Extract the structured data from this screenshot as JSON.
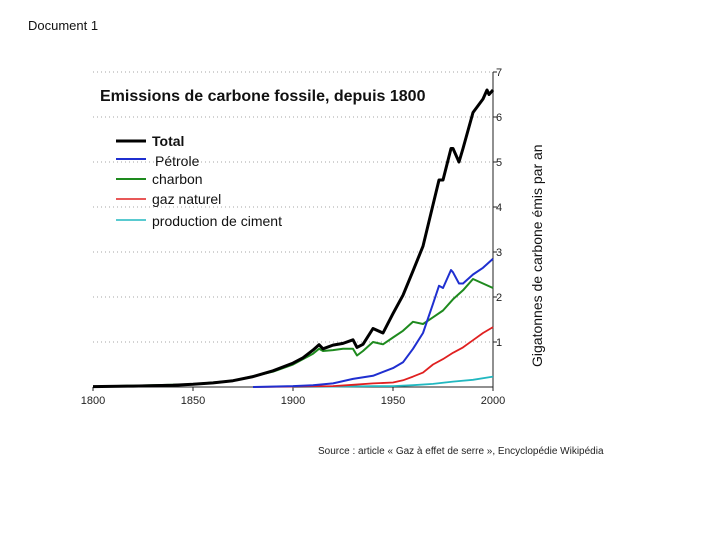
{
  "document": {
    "label": "Document 1",
    "source": "Source : article « Gaz à effet de serre », Encyclopédie Wikipédia"
  },
  "colors": {
    "total": "#000000",
    "petrole": "#1f2fd0",
    "charbon": "#1e8a1e",
    "gaz": "#e02020",
    "ciment": "#22b8c0",
    "grid": "#888888"
  },
  "chart_data": {
    "type": "line",
    "title": "Emissions de carbone fossile, depuis 1800",
    "xlabel": "",
    "ylabel": "Gigatonnes de carbone émis par an",
    "xlim": [
      1800,
      2000
    ],
    "ylim": [
      0,
      7
    ],
    "x_ticks": [
      "1800",
      "1850",
      "1900",
      "1950",
      "2000"
    ],
    "y_ticks": [
      "1",
      "2",
      "3",
      "4",
      "5",
      "6",
      "7"
    ],
    "y_axis_side": "right",
    "grid": "dotted-horizontal",
    "legend_position": "top-left",
    "series": [
      {
        "name": "Total",
        "color_key": "total",
        "x": [
          1800,
          1820,
          1840,
          1850,
          1860,
          1870,
          1880,
          1890,
          1900,
          1905,
          1910,
          1913,
          1915,
          1920,
          1925,
          1930,
          1932,
          1935,
          1940,
          1945,
          1950,
          1955,
          1960,
          1965,
          1970,
          1973,
          1975,
          1979,
          1980,
          1983,
          1985,
          1990,
          1995,
          1997,
          1998,
          2000
        ],
        "values": [
          0.01,
          0.02,
          0.04,
          0.06,
          0.09,
          0.14,
          0.23,
          0.36,
          0.53,
          0.65,
          0.82,
          0.94,
          0.85,
          0.93,
          0.97,
          1.05,
          0.88,
          0.95,
          1.3,
          1.2,
          1.63,
          2.04,
          2.58,
          3.13,
          4.05,
          4.6,
          4.6,
          5.3,
          5.3,
          5.0,
          5.3,
          6.1,
          6.4,
          6.6,
          6.5,
          6.6
        ]
      },
      {
        "name": "Pétrole",
        "color_key": "petrole",
        "x": [
          1880,
          1900,
          1910,
          1920,
          1930,
          1940,
          1950,
          1955,
          1960,
          1965,
          1970,
          1973,
          1975,
          1979,
          1980,
          1983,
          1985,
          1990,
          1995,
          2000
        ],
        "values": [
          0.0,
          0.02,
          0.04,
          0.08,
          0.18,
          0.25,
          0.42,
          0.55,
          0.85,
          1.2,
          1.85,
          2.25,
          2.2,
          2.6,
          2.55,
          2.3,
          2.3,
          2.5,
          2.65,
          2.85
        ]
      },
      {
        "name": "charbon",
        "color_key": "charbon",
        "x": [
          1800,
          1850,
          1870,
          1890,
          1900,
          1910,
          1913,
          1915,
          1920,
          1925,
          1930,
          1932,
          1935,
          1940,
          1945,
          1950,
          1955,
          1960,
          1965,
          1970,
          1975,
          1980,
          1985,
          1990,
          1995,
          2000
        ],
        "values": [
          0.01,
          0.06,
          0.14,
          0.34,
          0.5,
          0.74,
          0.85,
          0.8,
          0.82,
          0.85,
          0.85,
          0.7,
          0.8,
          1.0,
          0.95,
          1.1,
          1.25,
          1.45,
          1.4,
          1.55,
          1.7,
          1.95,
          2.15,
          2.4,
          2.3,
          2.2
        ]
      },
      {
        "name": "gaz naturel",
        "color_key": "gaz",
        "x": [
          1880,
          1900,
          1920,
          1930,
          1940,
          1950,
          1955,
          1960,
          1965,
          1970,
          1975,
          1980,
          1985,
          1990,
          1995,
          2000
        ],
        "values": [
          0.0,
          0.01,
          0.02,
          0.05,
          0.08,
          0.1,
          0.15,
          0.23,
          0.32,
          0.5,
          0.62,
          0.76,
          0.88,
          1.04,
          1.2,
          1.33
        ]
      },
      {
        "name": "production de ciment",
        "color_key": "ciment",
        "x": [
          1900,
          1920,
          1940,
          1950,
          1960,
          1970,
          1980,
          1990,
          2000
        ],
        "values": [
          0.0,
          0.01,
          0.02,
          0.02,
          0.04,
          0.07,
          0.12,
          0.16,
          0.23
        ]
      }
    ]
  }
}
